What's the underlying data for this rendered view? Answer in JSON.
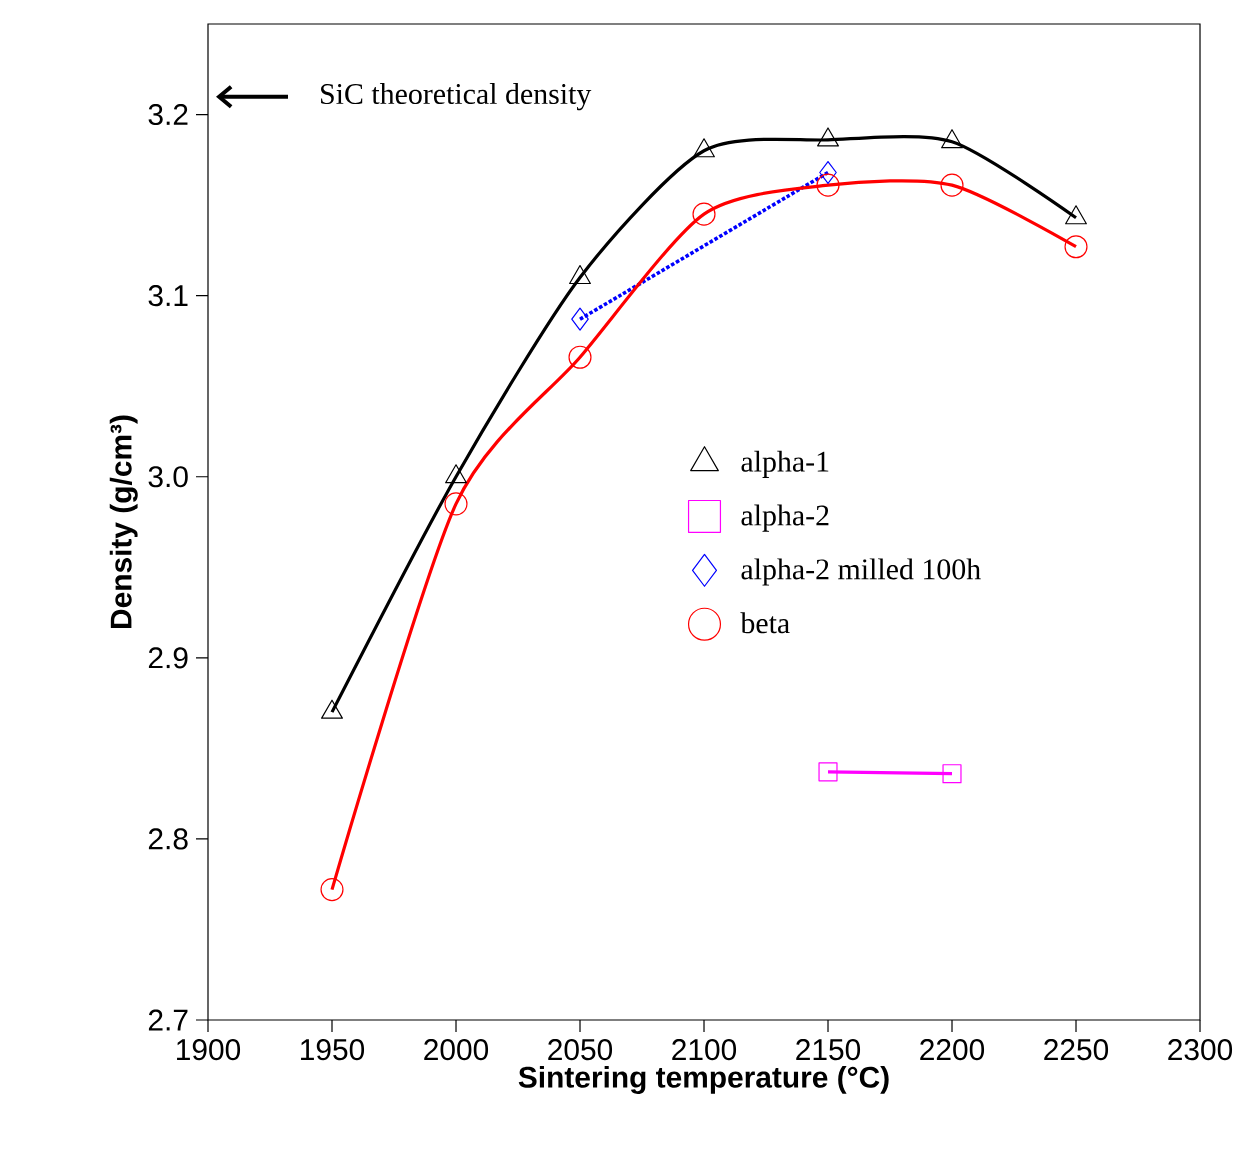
{
  "chart_data": {
    "type": "line",
    "xlabel": "Sintering temperature (°C)",
    "ylabel": "Density (g/cm³)",
    "xlim": [
      1900,
      2300
    ],
    "ylim": [
      2.7,
      3.25
    ],
    "xticks": [
      1900,
      1950,
      2000,
      2050,
      2100,
      2150,
      2200,
      2250,
      2300
    ],
    "yticks": [
      2.7,
      2.8,
      2.9,
      {
        "value": 3.0,
        "label": "3.0"
      },
      3.1,
      3.2
    ],
    "legend": "right",
    "annotations": [
      "SiC theoretical density"
    ],
    "series": [
      {
        "name": "alpha-1",
        "color": "#000000",
        "marker": "triangle",
        "line_style": "solid",
        "x": [
          1950,
          2000,
          2050,
          2100,
          2150,
          2200,
          2250
        ],
        "values": [
          2.87,
          3.0,
          3.11,
          3.18,
          3.186,
          3.185,
          3.143
        ]
      },
      {
        "name": "alpha-2",
        "color": "#ff00ff",
        "marker": "square",
        "line_style": "solid",
        "x": [
          2150,
          2200
        ],
        "values": [
          2.837,
          2.836
        ]
      },
      {
        "name": "alpha-2 milled 100h",
        "color": "#0000ff",
        "marker": "diamond",
        "line_style": "dotted",
        "x": [
          2050,
          2150
        ],
        "values": [
          3.087,
          3.168
        ]
      },
      {
        "name": "beta",
        "color": "#ff0000",
        "marker": "circle",
        "line_style": "solid",
        "x": [
          1950,
          2000,
          2050,
          2100,
          2150,
          2200,
          2250
        ],
        "values": [
          2.772,
          2.985,
          3.066,
          3.145,
          3.161,
          3.161,
          3.127
        ]
      }
    ]
  }
}
